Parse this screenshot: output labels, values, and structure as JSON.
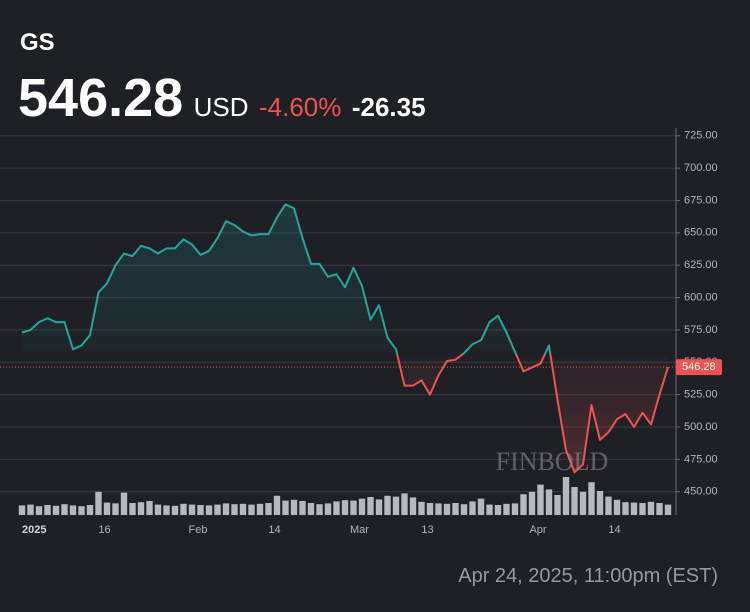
{
  "chart_data": {
    "type": "baseline",
    "symbol": "GS",
    "price": "546.28",
    "currency": "USD",
    "change_pct": "-4.60%",
    "change": "-26.35",
    "footer": "Apr 24, 2025, 11:00pm (EST)",
    "watermark": "FINBOLD",
    "categories": [
      "2025",
      null,
      null,
      null,
      null,
      null,
      null,
      null,
      null,
      "16",
      null,
      null,
      null,
      null,
      null,
      null,
      null,
      null,
      null,
      null,
      "Feb",
      null,
      null,
      null,
      null,
      null,
      null,
      null,
      null,
      "14",
      null,
      null,
      null,
      null,
      null,
      null,
      null,
      null,
      null,
      "Mar",
      null,
      null,
      null,
      null,
      null,
      null,
      null,
      "13",
      null,
      null,
      null,
      null,
      null,
      null,
      null,
      null,
      null,
      null,
      null,
      null,
      "Apr",
      null,
      null,
      null,
      null,
      null,
      null,
      null,
      null,
      "14",
      null,
      null,
      null,
      null,
      null,
      null,
      null
    ],
    "values": [
      573,
      575,
      581,
      584,
      581,
      581,
      560,
      563,
      571,
      604,
      611,
      625,
      634,
      632,
      640,
      638,
      634,
      638,
      638,
      645,
      641,
      633,
      636,
      646,
      659,
      656,
      651,
      648,
      649,
      649,
      662,
      672,
      669,
      646,
      626,
      626,
      616,
      618,
      608,
      623,
      609,
      583,
      594,
      569,
      560,
      532,
      532,
      536,
      525,
      540,
      551,
      552,
      557,
      564,
      567,
      581,
      586,
      573,
      558,
      543,
      546,
      549,
      563,
      521,
      482,
      465,
      471,
      517,
      490,
      496,
      506,
      510,
      500,
      511,
      502,
      525,
      546.28
    ],
    "volume": [
      2.4,
      2.6,
      2.2,
      2.5,
      2.3,
      2.7,
      2.4,
      2.2,
      2.5,
      5.8,
      3.1,
      2.9,
      5.6,
      3.0,
      3.2,
      3.5,
      2.6,
      2.4,
      2.3,
      2.8,
      2.6,
      2.5,
      2.4,
      2.6,
      2.9,
      2.7,
      2.8,
      2.6,
      2.8,
      3.0,
      4.8,
      3.6,
      3.8,
      3.5,
      3.0,
      2.7,
      2.9,
      3.4,
      3.7,
      3.6,
      4.1,
      4.5,
      3.9,
      4.8,
      4.6,
      5.4,
      4.4,
      3.3,
      3.0,
      2.9,
      2.8,
      3.0,
      2.7,
      3.4,
      4.1,
      2.6,
      2.5,
      2.8,
      2.9,
      5.2,
      5.8,
      7.6,
      6.4,
      5.0,
      9.5,
      7.0,
      5.8,
      8.2,
      6.0,
      4.6,
      3.8,
      3.2,
      3.1,
      3.0,
      3.3,
      3.0,
      2.6
    ],
    "baseline": 556,
    "up_color": "#26a69a",
    "down_color": "#ef5350",
    "volume_color": "#d1d4dc",
    "ylim": [
      432,
      731
    ],
    "yticks": [
      {
        "value": 450,
        "label": "450.00"
      },
      {
        "value": 475,
        "label": "475.00"
      },
      {
        "value": 500,
        "label": "500.00"
      },
      {
        "value": 525,
        "label": "525.00"
      },
      {
        "value": 550,
        "label": "550.00"
      },
      {
        "value": 575,
        "label": "575.00"
      },
      {
        "value": 600,
        "label": "600.00"
      },
      {
        "value": 625,
        "label": "625.00"
      },
      {
        "value": 650,
        "label": "650.00"
      },
      {
        "value": 675,
        "label": "675.00"
      },
      {
        "value": 700,
        "label": "700.00"
      },
      {
        "value": 725,
        "label": "725.00"
      }
    ],
    "grid": true
  }
}
